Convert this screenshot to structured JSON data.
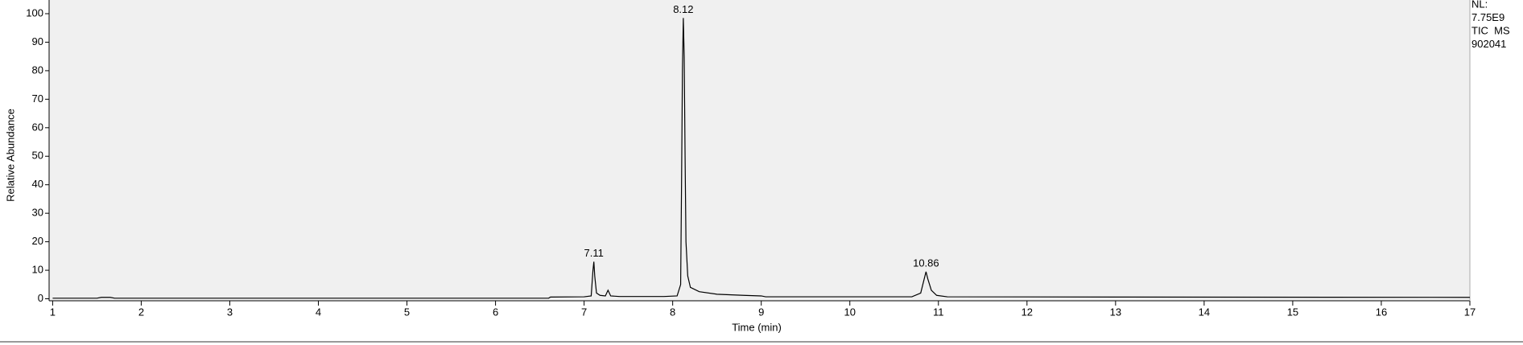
{
  "chart_data": {
    "type": "line",
    "x_label": "Time (min)",
    "y_label": "Relative Abundance",
    "info": [
      "NL:",
      "7.75E9",
      "TIC  MS",
      "902041"
    ],
    "xlim": [
      0.96,
      17
    ],
    "ylim": [
      -0.7,
      104.8
    ],
    "xticks": [
      1,
      2,
      3,
      4,
      5,
      6,
      7,
      8,
      9,
      10,
      11,
      12,
      13,
      14,
      15,
      16,
      17
    ],
    "yticks": [
      0,
      10,
      20,
      30,
      40,
      50,
      60,
      70,
      80,
      90,
      100
    ],
    "background": "#f0f0f0",
    "color": "#000000",
    "x": [
      1.0,
      1.5,
      1.55,
      1.65,
      1.7,
      3,
      5,
      6.6,
      6.62,
      7.0,
      7.08,
      7.1,
      7.11,
      7.12,
      7.14,
      7.18,
      7.24,
      7.27,
      7.3,
      7.4,
      7.9,
      8.05,
      8.09,
      8.1,
      8.11,
      8.12,
      8.13,
      8.14,
      8.15,
      8.17,
      8.2,
      8.3,
      8.5,
      8.8,
      9.0,
      9.05,
      10.7,
      10.8,
      10.84,
      10.86,
      10.88,
      10.92,
      10.98,
      11.1,
      13,
      17
    ],
    "values": [
      0.2,
      0.2,
      0.5,
      0.5,
      0.2,
      0.2,
      0.2,
      0.2,
      0.6,
      0.7,
      1.0,
      10,
      13,
      8,
      2,
      1.2,
      1.0,
      3,
      1.0,
      0.8,
      0.8,
      1.0,
      5,
      40,
      80,
      98.5,
      85,
      50,
      20,
      8,
      4,
      2.5,
      1.6,
      1.2,
      1.0,
      0.7,
      0.7,
      2,
      7,
      9.5,
      7,
      3,
      1.2,
      0.7,
      0.6,
      0.5
    ],
    "peaks": [
      {
        "label": "7.11",
        "x": 7.11,
        "y": 13
      },
      {
        "label": "8.12",
        "x": 8.12,
        "y": 98.5
      },
      {
        "label": "10.86",
        "x": 10.86,
        "y": 9.5
      }
    ]
  }
}
